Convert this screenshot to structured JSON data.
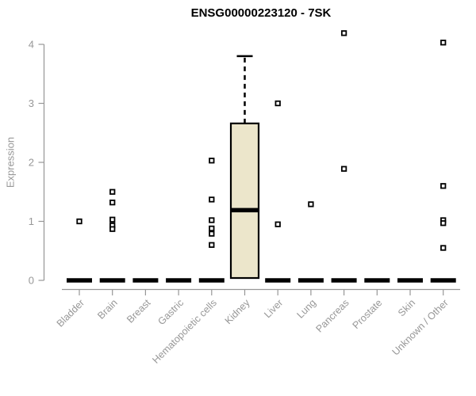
{
  "chart_data": {
    "type": "boxplot",
    "title": "ENSG00000223120 - 7SK",
    "ylabel": "Expression",
    "xlabel": "",
    "ylim": [
      0,
      4
    ],
    "yticks": [
      0,
      1,
      2,
      3,
      4
    ],
    "grid": false,
    "legend": false,
    "categories": [
      "Bladder",
      "Brain",
      "Breast",
      "Gastric",
      "Hematopoietic cells",
      "Kidney",
      "Liver",
      "Lung",
      "Pancreas",
      "Prostate",
      "Skin",
      "Unknown / Other"
    ],
    "boxes": [
      {
        "category": "Bladder",
        "whisker_low": 0,
        "q1": 0,
        "median": 0,
        "q3": 0,
        "whisker_high": 0,
        "outliers": [
          1.0
        ]
      },
      {
        "category": "Brain",
        "whisker_low": 0,
        "q1": 0,
        "median": 0,
        "q3": 0,
        "whisker_high": 0,
        "outliers": [
          1.5,
          1.32,
          1.03,
          0.93,
          0.87
        ]
      },
      {
        "category": "Breast",
        "whisker_low": 0,
        "q1": 0,
        "median": 0,
        "q3": 0,
        "whisker_high": 0,
        "outliers": []
      },
      {
        "category": "Gastric",
        "whisker_low": 0,
        "q1": 0,
        "median": 0,
        "q3": 0,
        "whisker_high": 0,
        "outliers": []
      },
      {
        "category": "Hematopoietic cells",
        "whisker_low": 0,
        "q1": 0,
        "median": 0,
        "q3": 0,
        "whisker_high": 0,
        "outliers": [
          2.03,
          1.37,
          1.02,
          0.88,
          0.79,
          0.6
        ]
      },
      {
        "category": "Kidney",
        "whisker_low": 0.04,
        "q1": 0.04,
        "median": 1.19,
        "q3": 2.66,
        "whisker_high": 3.8,
        "outliers": []
      },
      {
        "category": "Liver",
        "whisker_low": 0,
        "q1": 0,
        "median": 0,
        "q3": 0,
        "whisker_high": 0,
        "outliers": [
          3.0,
          0.95
        ]
      },
      {
        "category": "Lung",
        "whisker_low": 0,
        "q1": 0,
        "median": 0,
        "q3": 0,
        "whisker_high": 0,
        "outliers": [
          1.29
        ]
      },
      {
        "category": "Pancreas",
        "whisker_low": 0,
        "q1": 0,
        "median": 0,
        "q3": 0,
        "whisker_high": 0,
        "outliers": [
          4.19,
          1.89
        ]
      },
      {
        "category": "Prostate",
        "whisker_low": 0,
        "q1": 0,
        "median": 0,
        "q3": 0,
        "whisker_high": 0,
        "outliers": []
      },
      {
        "category": "Skin",
        "whisker_low": 0,
        "q1": 0,
        "median": 0,
        "q3": 0,
        "whisker_high": 0,
        "outliers": []
      },
      {
        "category": "Unknown / Other",
        "whisker_low": 0,
        "q1": 0,
        "median": 0,
        "q3": 0,
        "whisker_high": 0,
        "outliers": [
          4.03,
          1.02,
          0.97,
          0.55,
          1.6
        ]
      }
    ],
    "colors": {
      "box_fill": "#ece6cb",
      "box_stroke": "#000000",
      "median": "#000000",
      "outlier_fill": "#ffffff",
      "outlier_stroke": "#000000",
      "axis": "#979797",
      "tick_label": "#979797",
      "title": "#000000",
      "background": "#ffffff"
    }
  }
}
